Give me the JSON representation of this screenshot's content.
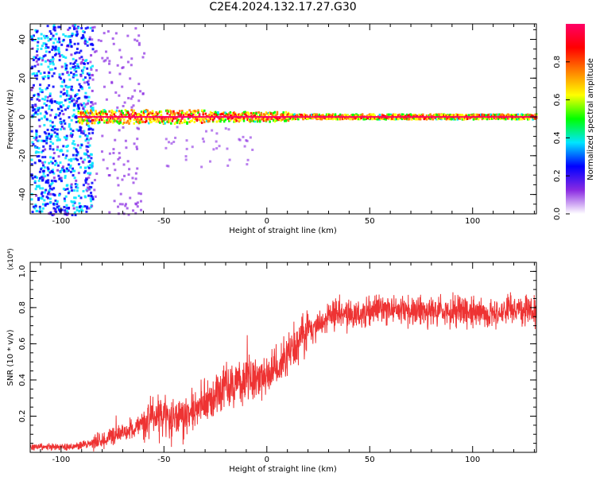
{
  "title": "C2E4.2024.132.17.27.G30",
  "chart_data": [
    {
      "type": "heatmap",
      "xlabel": "Height of straight line (km)",
      "ylabel": "Frequency (Hz)",
      "xlim": [
        -115,
        131
      ],
      "ylim": [
        -50,
        48
      ],
      "xticks": [
        -100,
        -50,
        0,
        50,
        100
      ],
      "yticks": [
        -40,
        -20,
        0,
        20,
        40
      ],
      "colorbar": {
        "label": "Normalized spectral amplitude",
        "range": [
          0,
          1
        ],
        "ticks": [
          0.0,
          0.2,
          0.4,
          0.6,
          0.8
        ],
        "colors": [
          "#ffffff",
          "#8a2be2",
          "#0000ff",
          "#00e5ff",
          "#00ff00",
          "#ffff00",
          "#ff8000",
          "#ff0000",
          "#ff0066"
        ]
      },
      "description_points": [
        {
          "height": -100,
          "freq_spread": 50,
          "amplitude": 0.3
        },
        {
          "height": -90,
          "freq_spread": 3,
          "amplitude": 0.7
        },
        {
          "height": -50,
          "freq_spread": 3,
          "amplitude": 0.9
        },
        {
          "height": 0,
          "freq_spread": 2,
          "amplitude": 0.95
        },
        {
          "height": 50,
          "freq_spread": 1,
          "amplitude": 0.95
        },
        {
          "height": 130,
          "freq_spread": 1,
          "amplitude": 0.95
        }
      ]
    },
    {
      "type": "line",
      "xlabel": "Height of straight line (km)",
      "ylabel": "SNR (10 * v/v)",
      "y_multiplier": "(x10⁴)",
      "xlim": [
        -115,
        131
      ],
      "ylim": [
        0,
        1.05
      ],
      "xticks": [
        -100,
        -50,
        0,
        50,
        100
      ],
      "yticks": [
        0.2,
        0.4,
        0.6,
        0.8,
        1.0
      ],
      "series": [
        {
          "color": "#ee3333",
          "x": [
            -115,
            -105,
            -95,
            -90,
            -85,
            -80,
            -75,
            -70,
            -65,
            -60,
            -55,
            -50,
            -45,
            -40,
            -35,
            -30,
            -25,
            -20,
            -15,
            -10,
            -5,
            0,
            5,
            10,
            15,
            20,
            25,
            30,
            35,
            40,
            45,
            50,
            55,
            60,
            65,
            70,
            75,
            80,
            85,
            90,
            95,
            100,
            105,
            110,
            115,
            120,
            125,
            131
          ],
          "y": [
            0.03,
            0.03,
            0.03,
            0.04,
            0.05,
            0.07,
            0.09,
            0.11,
            0.13,
            0.17,
            0.2,
            0.19,
            0.17,
            0.18,
            0.22,
            0.28,
            0.33,
            0.36,
            0.38,
            0.4,
            0.41,
            0.42,
            0.47,
            0.53,
            0.6,
            0.67,
            0.71,
            0.74,
            0.76,
            0.77,
            0.76,
            0.78,
            0.79,
            0.8,
            0.79,
            0.78,
            0.78,
            0.78,
            0.78,
            0.77,
            0.78,
            0.78,
            0.77,
            0.77,
            0.78,
            0.79,
            0.78,
            0.78
          ]
        }
      ]
    }
  ]
}
